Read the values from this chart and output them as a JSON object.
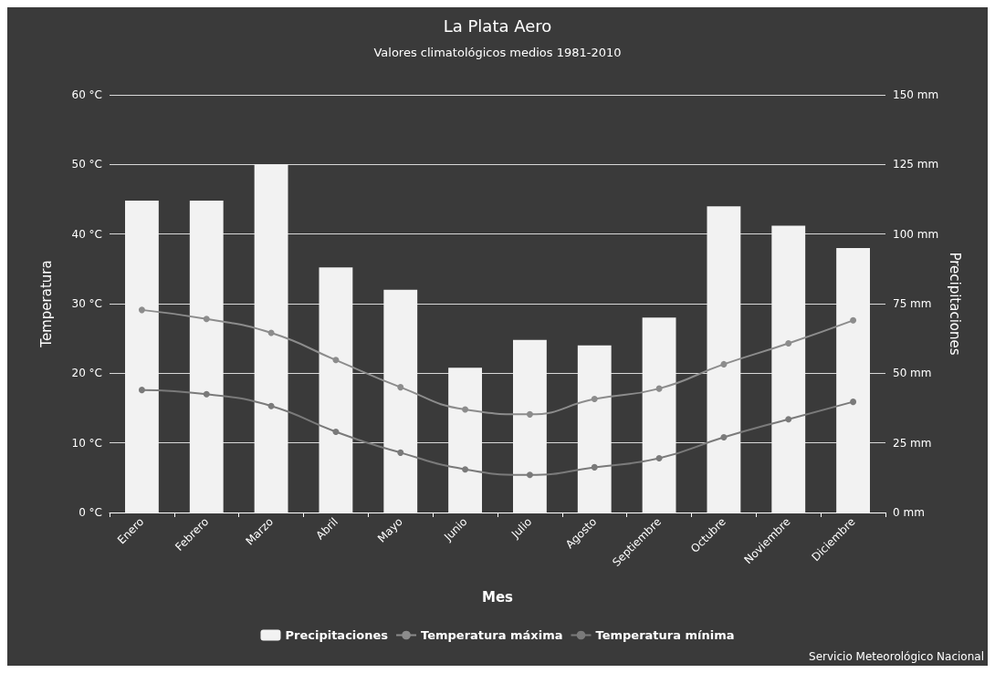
{
  "chart_data": {
    "type": "bar",
    "title": "La Plata Aero",
    "subtitle": "Valores climatológicos medios 1981-2010",
    "xlabel": "Mes",
    "ylabel": "Temperatura",
    "y2label": "Precipitaciones",
    "categories": [
      "Enero",
      "Febrero",
      "Marzo",
      "Abril",
      "Mayo",
      "Junio",
      "Julio",
      "Agosto",
      "Septiembre",
      "Octubre",
      "Noviembre",
      "Diciembre"
    ],
    "series": [
      {
        "name": "Precipitaciones",
        "axis": "y2",
        "color": "#f2f2f2",
        "values": [
          112,
          112,
          125,
          88,
          80,
          52,
          62,
          60,
          70,
          110,
          103,
          95
        ]
      },
      {
        "name": "Temperatura máxima",
        "type": "line",
        "color": "#8c8c8c",
        "values": [
          29.1,
          27.8,
          25.8,
          21.9,
          18.0,
          14.8,
          14.1,
          16.3,
          17.8,
          21.3,
          24.3,
          27.6
        ]
      },
      {
        "name": "Temperatura mínima",
        "type": "line",
        "color": "#7a7a7a",
        "values": [
          17.6,
          17.0,
          15.3,
          11.6,
          8.6,
          6.2,
          5.4,
          6.5,
          7.8,
          10.8,
          13.4,
          15.9
        ]
      }
    ],
    "ylim": [
      0,
      60
    ],
    "yticks": [
      {
        "value": 0,
        "label": "0 °C"
      },
      {
        "value": 10,
        "label": "10 °C"
      },
      {
        "value": 20,
        "label": "20 °C"
      },
      {
        "value": 30,
        "label": "30 °C"
      },
      {
        "value": 40,
        "label": "40 °C"
      },
      {
        "value": 50,
        "label": "50 °C"
      },
      {
        "value": 60,
        "label": "60 °C"
      }
    ],
    "y2lim": [
      0,
      150
    ],
    "y2ticks": [
      {
        "value": 0,
        "label": "0 mm"
      },
      {
        "value": 25,
        "label": "25 mm"
      },
      {
        "value": 50,
        "label": "50 mm"
      },
      {
        "value": 75,
        "label": "75 mm"
      },
      {
        "value": 100,
        "label": "100 mm"
      },
      {
        "value": 125,
        "label": "125 mm"
      },
      {
        "value": 150,
        "label": "150 mm"
      }
    ],
    "grid": "y",
    "legend": "bottom",
    "marker": "circle",
    "line_style": "solid",
    "annotations": [
      "Servicio Meteorológico Nacional"
    ]
  }
}
